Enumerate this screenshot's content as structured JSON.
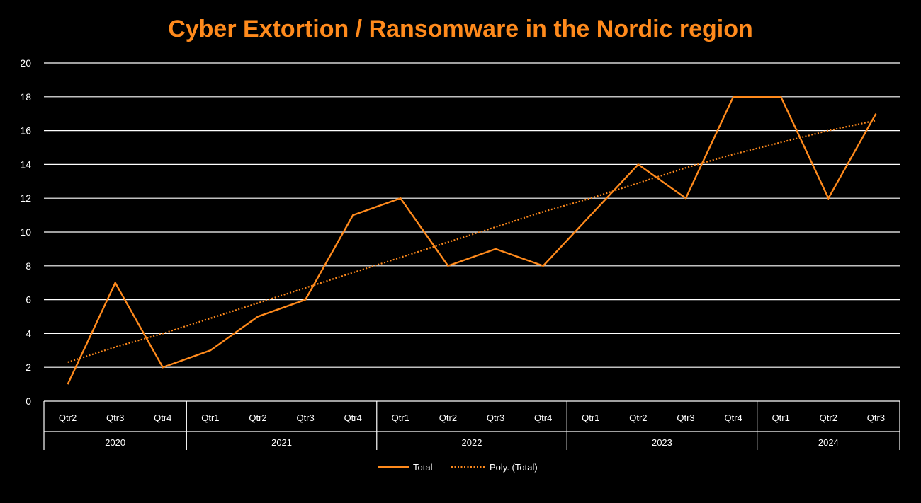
{
  "chart_data": {
    "type": "line",
    "title": "Cyber Extortion / Ransomware in the Nordic region",
    "xlabel": "",
    "ylabel": "",
    "ylim": [
      0,
      20
    ],
    "yticks": [
      "0",
      "2",
      "4",
      "6",
      "8",
      "10",
      "12",
      "14",
      "16",
      "18",
      "20"
    ],
    "grid": true,
    "legend_placement": "bottom",
    "categories": [
      "Qtr2",
      "Qtr3",
      "Qtr4",
      "Qtr1",
      "Qtr2",
      "Qtr3",
      "Qtr4",
      "Qtr1",
      "Qtr2",
      "Qtr3",
      "Qtr4",
      "Qtr1",
      "Qtr2",
      "Qtr3",
      "Qtr4",
      "Qtr1",
      "Qtr2",
      "Qtr3"
    ],
    "groups": [
      {
        "label": "2020",
        "count": 3
      },
      {
        "label": "2021",
        "count": 4
      },
      {
        "label": "2022",
        "count": 4
      },
      {
        "label": "2023",
        "count": 4
      },
      {
        "label": "2024",
        "count": 3
      }
    ],
    "series": [
      {
        "name": "Total",
        "style": "solid",
        "color": "#ff8a1c",
        "values": [
          1,
          7,
          2,
          3,
          5,
          6,
          11,
          12,
          8,
          9,
          8,
          11,
          14,
          12,
          18,
          18,
          12,
          17
        ]
      },
      {
        "name": "Poly. (Total)",
        "style": "dotted",
        "color": "#ff8a1c",
        "values": [
          2.3,
          3.2,
          4.0,
          4.9,
          5.8,
          6.7,
          7.6,
          8.5,
          9.4,
          10.3,
          11.2,
          12.0,
          12.9,
          13.8,
          14.6,
          15.3,
          16.0,
          16.6
        ]
      }
    ]
  },
  "colors": {
    "accent": "#ff8a1c",
    "background": "#000000",
    "grid": "#ffffff",
    "text": "#ffffff"
  }
}
